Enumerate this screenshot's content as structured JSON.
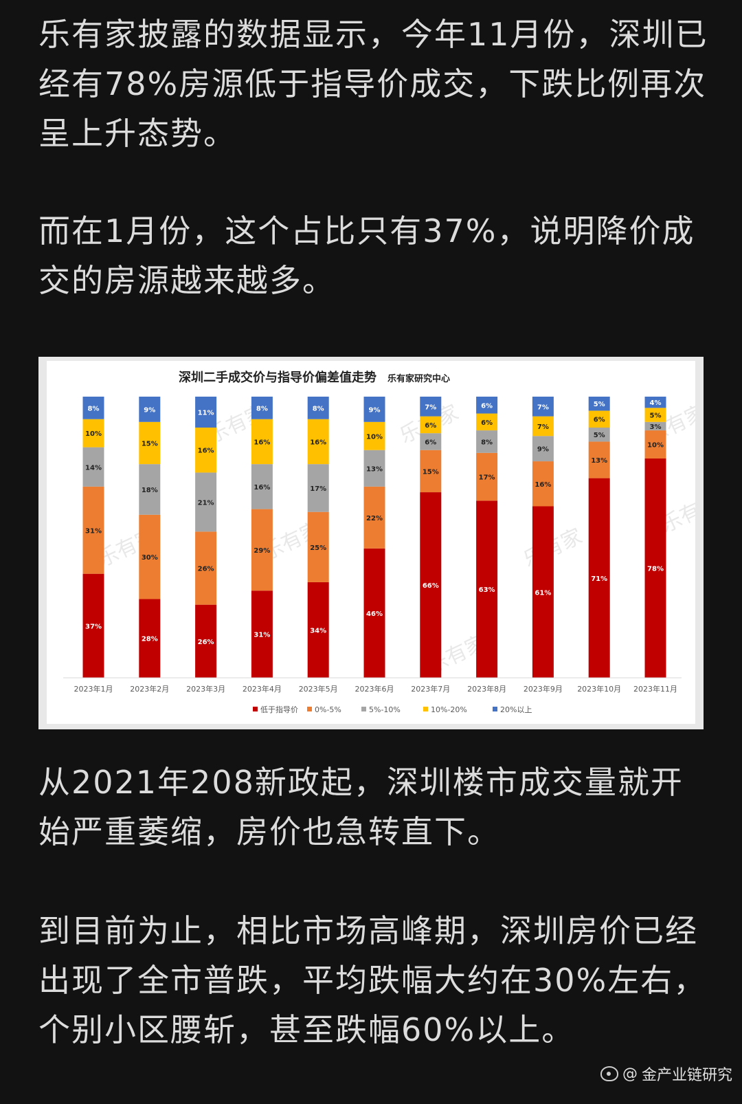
{
  "paragraphs": {
    "p1": "乐有家披露的数据显示，今年11月份，深圳已经有78%房源低于指导价成交，下跌比例再次呈上升态势。",
    "p2": "而在1月份，这个占比只有37%，说明降价成交的房源越来越多。",
    "p3": "从2021年208新政起，深圳楼市成交量就开始严重萎缩，房价也急转直下。",
    "p4": "到目前为止，相比市场高峰期，深圳房价已经出现了全市普跌，平均跌幅大约在30%左右，个别小区腰斩，甚至跌幅60%以上。"
  },
  "watermark": {
    "prefix": "@",
    "text": "金产业链研究",
    "icon": "weibo-icon"
  },
  "chart_data": {
    "type": "bar",
    "stacked": true,
    "percent_stacked": true,
    "title": "深圳二手成交价与指导价偏差值走势",
    "subtitle": "乐有家研究中心",
    "categories": [
      "2023年1月",
      "2023年2月",
      "2023年3月",
      "2023年4月",
      "2023年5月",
      "2023年6月",
      "2023年7月",
      "2023年8月",
      "2023年9月",
      "2023年10月",
      "2023年11月"
    ],
    "series": [
      {
        "name": "低于指导价",
        "color": "#c00000",
        "values": [
          37,
          28,
          26,
          31,
          34,
          46,
          66,
          63,
          61,
          71,
          78
        ]
      },
      {
        "name": "0%-5%",
        "color": "#ed7d31",
        "values": [
          31,
          30,
          26,
          29,
          25,
          22,
          15,
          17,
          16,
          13,
          10
        ]
      },
      {
        "name": "5%-10%",
        "color": "#a5a5a5",
        "values": [
          14,
          18,
          21,
          16,
          17,
          13,
          6,
          8,
          9,
          5,
          3
        ]
      },
      {
        "name": "10%-20%",
        "color": "#ffc000",
        "values": [
          10,
          15,
          16,
          16,
          16,
          10,
          6,
          6,
          7,
          6,
          5
        ]
      },
      {
        "name": "20%以上",
        "color": "#4472c4",
        "values": [
          8,
          9,
          11,
          8,
          8,
          9,
          7,
          6,
          7,
          5,
          4
        ]
      }
    ],
    "ylim": [
      0,
      100
    ],
    "grid": false,
    "legend_position": "bottom",
    "watermark_text": "乐有家"
  }
}
